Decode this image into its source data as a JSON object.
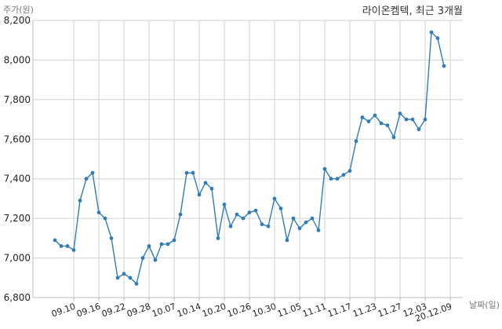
{
  "chart_data": {
    "type": "line",
    "title": "라이온켐텍, 최근 3개월",
    "ylabel": "주가(원)",
    "xlabel": "날짜(일)",
    "ylim": [
      6800,
      8200
    ],
    "yticks": [
      6800,
      7000,
      7200,
      7400,
      7600,
      7800,
      8000,
      8200
    ],
    "ytick_labels": [
      "6,800",
      "7,000",
      "7,200",
      "7,400",
      "7,600",
      "7,800",
      "8,000",
      "8,200"
    ],
    "xtick_labels": [
      "09.10",
      "09.16",
      "09.22",
      "09.28",
      "10.07",
      "10.14",
      "10.20",
      "10.26",
      "10.30",
      "11.05",
      "11.11",
      "11.17",
      "11.23",
      "11.27",
      "12.03",
      "20.12.09"
    ],
    "xtick_index": [
      3,
      7,
      11,
      15,
      19,
      23,
      27,
      31,
      35,
      39,
      43,
      47,
      51,
      55,
      59,
      63
    ],
    "grid": true,
    "line_color": "#2f7db6",
    "series": [
      {
        "name": "",
        "values": [
          7090,
          7060,
          7060,
          7040,
          7290,
          7400,
          7430,
          7230,
          7200,
          7100,
          6900,
          6920,
          6900,
          6870,
          7000,
          7060,
          6990,
          7070,
          7070,
          7090,
          7220,
          7430,
          7430,
          7320,
          7380,
          7350,
          7100,
          7270,
          7160,
          7220,
          7200,
          7230,
          7240,
          7170,
          7160,
          7300,
          7250,
          7090,
          7200,
          7150,
          7180,
          7200,
          7140,
          7450,
          7400,
          7400,
          7420,
          7440,
          7590,
          7710,
          7690,
          7720,
          7680,
          7670,
          7610,
          7730,
          7700,
          7700,
          7650,
          7700,
          8140,
          8110,
          7970
        ]
      }
    ]
  }
}
